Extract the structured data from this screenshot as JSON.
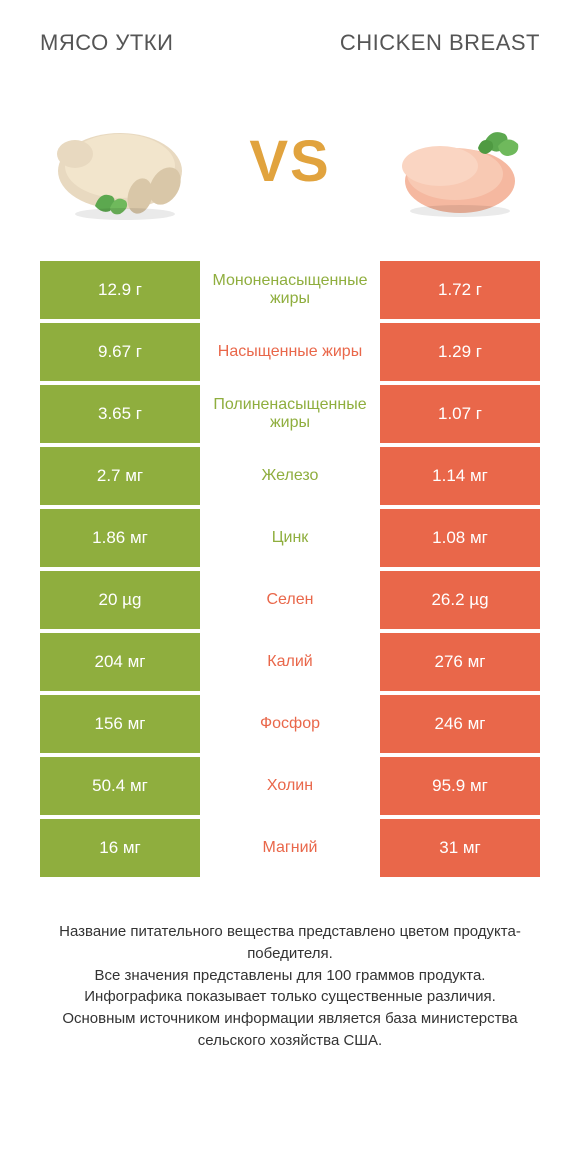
{
  "header": {
    "left_title": "Мясо утки",
    "right_title": "CHICKEN BREAST",
    "vs_label": "VS"
  },
  "colors": {
    "green": "#8fae3e",
    "orange": "#e9674a",
    "vs": "#e1a33e",
    "background": "#ffffff"
  },
  "rows": [
    {
      "left": "12.9 г",
      "label": "Мононенасыщенные жиры",
      "right": "1.72 г",
      "winner": "left"
    },
    {
      "left": "9.67 г",
      "label": "Насыщенные жиры",
      "right": "1.29 г",
      "winner": "right"
    },
    {
      "left": "3.65 г",
      "label": "Полиненасыщенные жиры",
      "right": "1.07 г",
      "winner": "left"
    },
    {
      "left": "2.7 мг",
      "label": "Железо",
      "right": "1.14 мг",
      "winner": "left"
    },
    {
      "left": "1.86 мг",
      "label": "Цинк",
      "right": "1.08 мг",
      "winner": "left"
    },
    {
      "left": "20 µg",
      "label": "Селен",
      "right": "26.2 µg",
      "winner": "right"
    },
    {
      "left": "204 мг",
      "label": "Калий",
      "right": "276 мг",
      "winner": "right"
    },
    {
      "left": "156 мг",
      "label": "Фосфор",
      "right": "246 мг",
      "winner": "right"
    },
    {
      "left": "50.4 мг",
      "label": "Холин",
      "right": "95.9 мг",
      "winner": "right"
    },
    {
      "left": "16 мг",
      "label": "Магний",
      "right": "31 мг",
      "winner": "right"
    }
  ],
  "footer": {
    "line1": "Название питательного вещества представлено цветом продукта-победителя.",
    "line2": "Все значения представлены для 100 граммов продукта.",
    "line3": "Инфографика показывает только существенные различия.",
    "line4": "Основным источником информации является база министерства сельского хозяйства США."
  }
}
